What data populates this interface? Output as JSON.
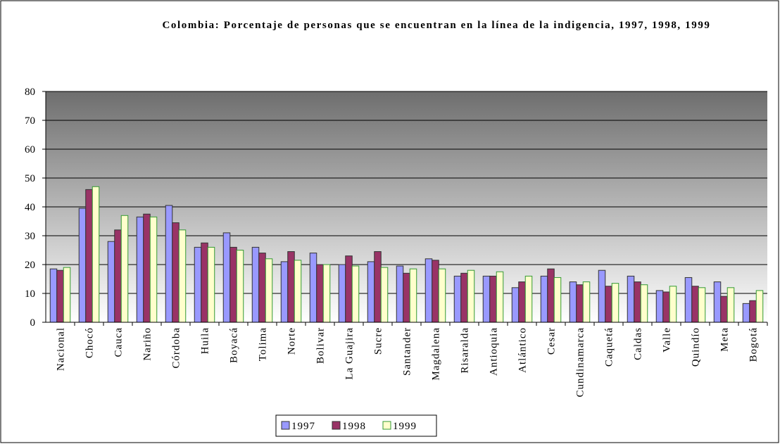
{
  "chart_data": {
    "type": "bar",
    "title": "Colombia: Porcentaje de personas que se encuentran en la línea de la indigencia, 1997, 1998, 1999",
    "categories": [
      "Nacional",
      "Chocó",
      "Cauca",
      "Nariño",
      "Córdoba",
      "Huila",
      "Boyacá",
      "Tolima",
      "Norte",
      "Bolivar",
      "La Guajira",
      "Sucre",
      "Santander",
      "Magdalena",
      "Risaralda",
      "Antioquia",
      "Atlántico",
      "Cesar",
      "Cundinamarca",
      "Caquetá",
      "Caldas",
      "Valle",
      "Quindío",
      "Meta",
      "Bogotá"
    ],
    "series": [
      {
        "name": "1997",
        "color": "#9999ff",
        "values": [
          18.5,
          39.5,
          28,
          36.5,
          40.5,
          26,
          31,
          26,
          21,
          24,
          20,
          21,
          19.5,
          22,
          16,
          16,
          12,
          16,
          14,
          18,
          16,
          11,
          15.5,
          14,
          6.5
        ]
      },
      {
        "name": "1998",
        "color": "#993366",
        "values": [
          18,
          46,
          32,
          37.5,
          34.5,
          27.5,
          26,
          24,
          24.5,
          20,
          23,
          24.5,
          17,
          21.5,
          17,
          16,
          14,
          18.5,
          13,
          12.5,
          14,
          10.5,
          12.5,
          9,
          7.5
        ]
      },
      {
        "name": "1999",
        "color": "#ffffcc",
        "values": [
          19,
          47,
          37,
          36.5,
          32,
          26,
          25,
          22,
          21.5,
          20,
          19.5,
          19,
          18.5,
          18.5,
          18,
          17.5,
          16,
          15.5,
          14,
          13.5,
          13,
          12.5,
          12,
          12,
          11
        ]
      }
    ],
    "ylim": [
      0,
      80
    ],
    "yticks": [
      0,
      10,
      20,
      30,
      40,
      50,
      60,
      70,
      80
    ],
    "grid": true
  }
}
